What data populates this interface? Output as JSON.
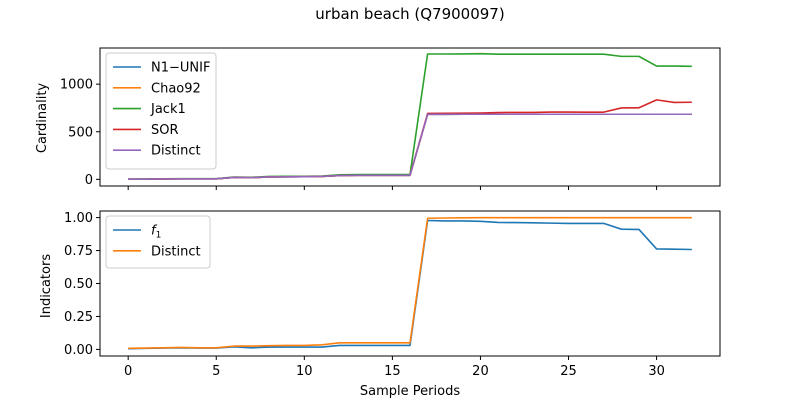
{
  "figure": {
    "title": "urban beach (Q7900097)"
  },
  "chart_data": [
    {
      "type": "line",
      "ylabel": "Cardinality",
      "xlabel": "",
      "xlim": [
        -1.6,
        33.6
      ],
      "ylim": [
        -70,
        1380
      ],
      "xticks": [
        0,
        5,
        10,
        15,
        20,
        25,
        30
      ],
      "yticks": [
        0,
        500,
        1000
      ],
      "ytick_labels": [
        "0",
        "500",
        "1000"
      ],
      "show_xtick_labels": false,
      "legend": "top-left",
      "x": [
        0,
        1,
        2,
        3,
        4,
        5,
        6,
        7,
        8,
        9,
        10,
        11,
        12,
        13,
        14,
        15,
        16,
        17,
        18,
        19,
        20,
        21,
        22,
        23,
        24,
        25,
        26,
        27,
        28,
        29,
        30,
        31,
        32
      ],
      "series": [
        {
          "name": "N1−UNIF",
          "color": "#1f77b4",
          "values": [
            2,
            2,
            4,
            6,
            6,
            6,
            20,
            18,
            25,
            27,
            28,
            30,
            40,
            42,
            42,
            42,
            42,
            683,
            683,
            684,
            684,
            684,
            684,
            684,
            684,
            684,
            684,
            684,
            684,
            684,
            684,
            684,
            684
          ]
        },
        {
          "name": "Chao92",
          "color": "#ff7f0e",
          "values": [
            2,
            2,
            4,
            6,
            6,
            6,
            20,
            18,
            25,
            27,
            28,
            30,
            40,
            42,
            42,
            42,
            42,
            683,
            683,
            684,
            684,
            684,
            684,
            684,
            684,
            684,
            684,
            684,
            684,
            684,
            684,
            684,
            684
          ]
        },
        {
          "name": "Jack1",
          "color": "#2ca02c",
          "values": [
            2,
            3,
            5,
            7,
            7,
            7,
            24,
            22,
            30,
            32,
            32,
            34,
            48,
            50,
            50,
            50,
            50,
            1317,
            1317,
            1318,
            1320,
            1315,
            1315,
            1315,
            1315,
            1315,
            1315,
            1315,
            1292,
            1292,
            1190,
            1190,
            1188
          ]
        },
        {
          "name": "SOR",
          "color": "#d62728",
          "values": [
            2,
            2,
            4,
            6,
            6,
            6,
            20,
            18,
            25,
            27,
            28,
            30,
            40,
            42,
            42,
            42,
            42,
            692,
            694,
            695,
            697,
            702,
            703,
            703,
            707,
            707,
            706,
            706,
            750,
            752,
            835,
            808,
            810
          ]
        },
        {
          "name": "Distinct",
          "color": "#9467bd",
          "values": [
            2,
            2,
            4,
            6,
            6,
            6,
            20,
            18,
            25,
            27,
            28,
            30,
            40,
            42,
            42,
            42,
            42,
            683,
            683,
            684,
            684,
            684,
            684,
            684,
            684,
            684,
            684,
            684,
            684,
            684,
            684,
            684,
            684
          ]
        }
      ]
    },
    {
      "type": "line",
      "ylabel": "Indicators",
      "xlabel": "Sample Periods",
      "xlim": [
        -1.6,
        33.6
      ],
      "ylim": [
        -0.05,
        1.05
      ],
      "xticks": [
        0,
        5,
        10,
        15,
        20,
        25,
        30
      ],
      "xtick_labels": [
        "0",
        "5",
        "10",
        "15",
        "20",
        "25",
        "30"
      ],
      "yticks": [
        0,
        0.25,
        0.5,
        0.75,
        1.0
      ],
      "ytick_labels": [
        "0.00",
        "0.25",
        "0.50",
        "0.75",
        "1.00"
      ],
      "show_xtick_labels": true,
      "legend": "top-left",
      "x": [
        0,
        1,
        2,
        3,
        4,
        5,
        6,
        7,
        8,
        9,
        10,
        11,
        12,
        13,
        14,
        15,
        16,
        17,
        18,
        19,
        20,
        21,
        22,
        23,
        24,
        25,
        26,
        27,
        28,
        29,
        30,
        31,
        32
      ],
      "series": [
        {
          "name": "f1",
          "color": "#1f77b4",
          "values": [
            0.005,
            0.008,
            0.01,
            0.012,
            0.01,
            0.01,
            0.02,
            0.012,
            0.018,
            0.018,
            0.018,
            0.018,
            0.03,
            0.03,
            0.03,
            0.03,
            0.03,
            0.978,
            0.975,
            0.975,
            0.972,
            0.963,
            0.962,
            0.96,
            0.958,
            0.956,
            0.956,
            0.956,
            0.912,
            0.91,
            0.762,
            0.76,
            0.758
          ]
        },
        {
          "name": "Distinct",
          "color": "#ff7f0e",
          "values": [
            0.008,
            0.01,
            0.012,
            0.015,
            0.012,
            0.012,
            0.025,
            0.025,
            0.028,
            0.03,
            0.03,
            0.035,
            0.05,
            0.05,
            0.05,
            0.05,
            0.05,
            0.995,
            0.997,
            0.998,
            0.999,
            0.999,
            0.999,
            0.999,
            0.999,
            0.999,
            0.999,
            0.999,
            0.999,
            0.999,
            0.999,
            0.999,
            0.999
          ]
        }
      ]
    }
  ]
}
